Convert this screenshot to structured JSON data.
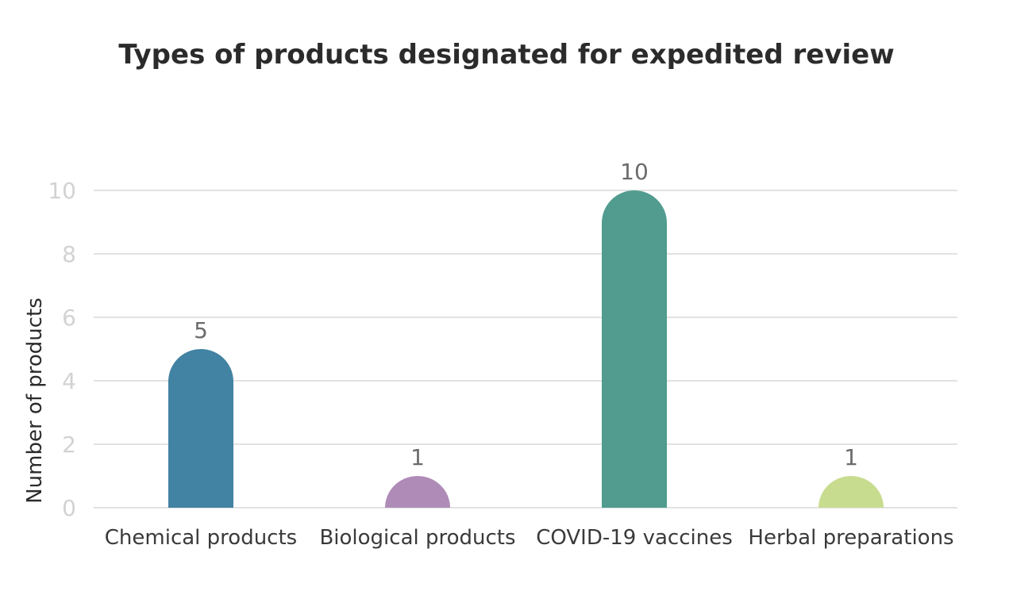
{
  "chart_data": {
    "type": "bar",
    "title": "Types of products designated for expedited review",
    "xlabel": "",
    "ylabel": "Number of products",
    "categories": [
      "Chemical products",
      "Biological products",
      "COVID-19 vaccines",
      "Herbal preparations"
    ],
    "values": [
      5,
      1,
      10,
      1
    ],
    "data_labels": [
      "5",
      "1",
      "10",
      "1"
    ],
    "bar_colors": [
      "#4282a2",
      "#af8bb8",
      "#519c8f",
      "#c8dc90"
    ],
    "ylim": [
      0,
      10
    ],
    "yticks": [
      0,
      2,
      4,
      6,
      8,
      10
    ],
    "ytick_labels": [
      "0",
      "2",
      "4",
      "6",
      "8",
      "10"
    ],
    "grid": true,
    "legend": "none"
  }
}
